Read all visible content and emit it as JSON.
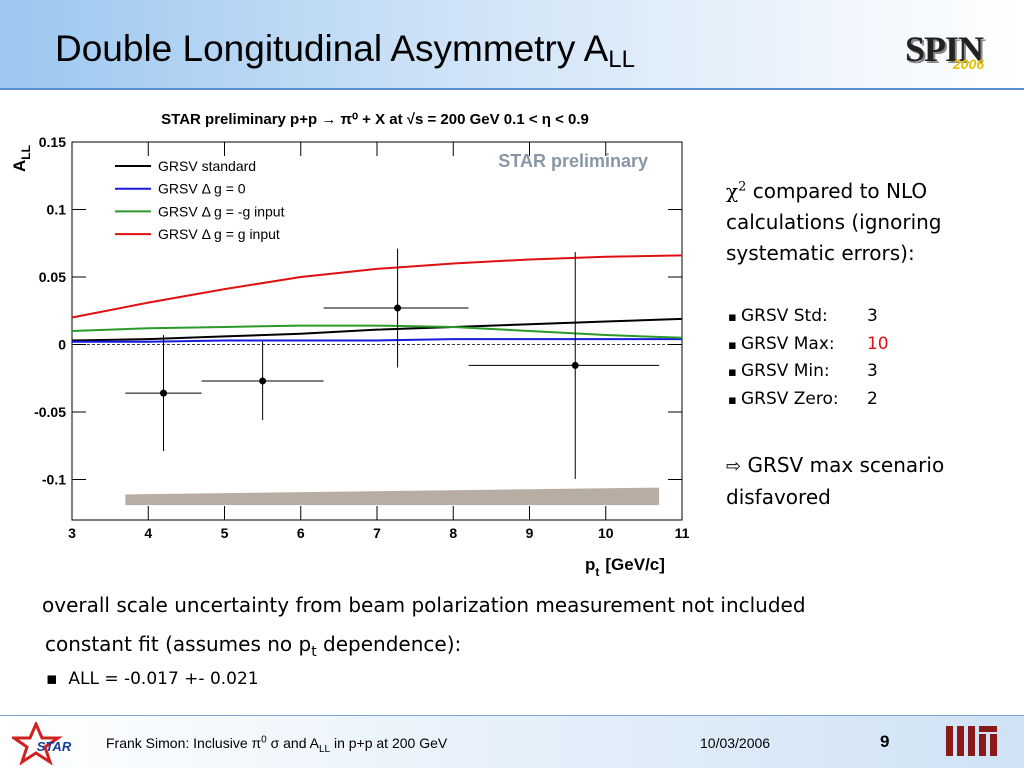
{
  "header": {
    "title": "Double Longitudinal Asymmetry A",
    "title_sub": "LL"
  },
  "logos": {
    "spin": "SPIN",
    "spin_year": "2006",
    "star": "STAR"
  },
  "chart_data": {
    "type": "line",
    "title": "STAR preliminary p+p → π⁰ + X at √s = 200 GeV 0.1 < η < 0.9",
    "annotation": "STAR preliminary",
    "ylabel": {
      "main": "A",
      "sub": "LL"
    },
    "xlabel": {
      "main": "p",
      "sub": "t",
      "unit": "[GeV/c]"
    },
    "x": [
      3,
      4,
      5,
      6,
      7,
      8,
      9,
      10,
      11
    ],
    "series": [
      {
        "name": "GRSV standard",
        "color": "#000000",
        "values": [
          0.003,
          0.004,
          0.006,
          0.008,
          0.011,
          0.013,
          0.015,
          0.017,
          0.019
        ]
      },
      {
        "name": "GRSV Δ g = 0",
        "color": "#1a1adf",
        "values": [
          0.002,
          0.002,
          0.003,
          0.003,
          0.003,
          0.004,
          0.004,
          0.004,
          0.004
        ]
      },
      {
        "name": "GRSV Δ g = -g input",
        "color": "#2a9a2a",
        "values": [
          0.01,
          0.012,
          0.013,
          0.014,
          0.014,
          0.013,
          0.01,
          0.007,
          0.005
        ]
      },
      {
        "name": "GRSV Δ g = g input",
        "color": "#e01010",
        "values": [
          0.02,
          0.031,
          0.041,
          0.05,
          0.056,
          0.06,
          0.063,
          0.065,
          0.066
        ]
      }
    ],
    "points": {
      "x": [
        4.2,
        5.5,
        7.27,
        9.6
      ],
      "values": [
        -0.036,
        -0.027,
        0.027,
        -0.0155
      ],
      "yerr": [
        0.043,
        0.029,
        0.044,
        0.084
      ],
      "xlow": [
        3.7,
        4.7,
        6.3,
        8.2
      ],
      "xhigh": [
        4.7,
        6.3,
        8.2,
        10.7
      ],
      "color": "#000000"
    },
    "band": {
      "x": [
        3.7,
        10.7
      ],
      "lower": [
        -0.119,
        -0.119
      ],
      "upper": [
        -0.111,
        -0.106
      ],
      "color": "#b8ada3"
    },
    "zero_line": "dashed",
    "xlim": [
      3,
      11
    ],
    "xticks": [
      3,
      4,
      5,
      6,
      7,
      8,
      9,
      10,
      11
    ],
    "ylim": [
      -0.13,
      0.15
    ],
    "yticks": [
      -0.1,
      -0.05,
      0,
      0.05,
      0.1,
      0.15
    ],
    "legend": "upper left"
  },
  "side": {
    "chi_sym": "χ",
    "chi_sup": "2",
    "intro": " compared to NLO calculations (ignoring systematic errors):",
    "items": [
      {
        "label": "GRSV Std:",
        "value": "3"
      },
      {
        "label": "GRSV Max:",
        "value": "10"
      },
      {
        "label": "GRSV Min:",
        "value": "3"
      },
      {
        "label": "GRSV Zero:",
        "value": "2"
      }
    ],
    "conclusion": "GRSV max scenario disfavored"
  },
  "body": {
    "note": "overall scale uncertainty from beam polarization measurement not included",
    "fit_a": "constant fit (assumes no p",
    "fit_sub": "t",
    "fit_b": " dependence):",
    "fit_result": "ALL = -0.017 +- 0.021"
  },
  "footer": {
    "a": "Frank Simon: Inclusive π",
    "a_sup": "0",
    "b": " σ and A",
    "b_sub": "LL",
    "c": " in p+p at 200 GeV",
    "date": "10/03/2006",
    "page": "9"
  }
}
